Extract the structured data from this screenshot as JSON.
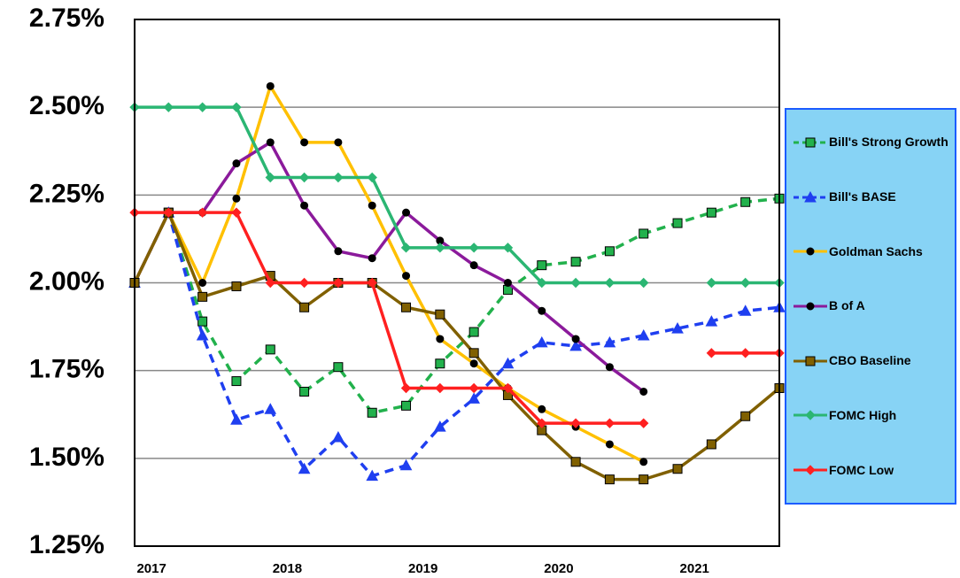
{
  "chart_data": {
    "type": "line",
    "categories": [
      "2017",
      null,
      null,
      null,
      "2018",
      null,
      null,
      null,
      "2019",
      null,
      null,
      null,
      "2020",
      null,
      null,
      null,
      "2021",
      null,
      null,
      null
    ],
    "ylim": [
      1.25,
      2.75
    ],
    "yticks": [
      {
        "value": 1.25,
        "label": "1.25%"
      },
      {
        "value": 1.5,
        "label": "1.50%"
      },
      {
        "value": 1.75,
        "label": "1.75%"
      },
      {
        "value": 2.0,
        "label": "2.00%"
      },
      {
        "value": 2.25,
        "label": "2.25%"
      },
      {
        "value": 2.5,
        "label": "2.50%"
      },
      {
        "value": 2.75,
        "label": "2.75%"
      }
    ],
    "grid": true,
    "legend": "right",
    "series": [
      {
        "name": "Bill's Strong Growth",
        "color": "#22b14c",
        "dashed": true,
        "marker": "square",
        "values": [
          2.0,
          2.2,
          1.89,
          1.72,
          1.81,
          1.69,
          1.76,
          1.63,
          1.65,
          1.77,
          1.86,
          1.98,
          2.05,
          2.06,
          2.09,
          2.14,
          2.17,
          2.2,
          2.23,
          2.24
        ]
      },
      {
        "name": "Bill's BASE",
        "color": "#1f3ff0",
        "dashed": true,
        "marker": "triangle",
        "values": [
          2.0,
          2.2,
          1.85,
          1.61,
          1.64,
          1.47,
          1.56,
          1.45,
          1.48,
          1.59,
          1.67,
          1.77,
          1.83,
          1.82,
          1.83,
          1.85,
          1.87,
          1.89,
          1.92,
          1.93
        ]
      },
      {
        "name": "Goldman Sachs",
        "color": "#ffc000",
        "dashed": false,
        "marker": "circle",
        "values": [
          2.0,
          2.2,
          2.0,
          2.24,
          2.56,
          2.4,
          2.4,
          2.22,
          2.02,
          1.84,
          1.77,
          1.7,
          1.64,
          1.59,
          1.54,
          1.49,
          null,
          null,
          null,
          null
        ]
      },
      {
        "name": "B of A",
        "color": "#8b1a9b",
        "dashed": false,
        "marker": "circle",
        "values": [
          2.0,
          2.2,
          2.2,
          2.34,
          2.4,
          2.22,
          2.09,
          2.07,
          2.2,
          2.12,
          2.05,
          2.0,
          1.92,
          1.84,
          1.76,
          1.69,
          null,
          null,
          null,
          null
        ]
      },
      {
        "name": "CBO Baseline",
        "color": "#806000",
        "dashed": false,
        "marker": "square",
        "values": [
          2.0,
          2.2,
          1.96,
          1.99,
          2.02,
          1.93,
          2.0,
          2.0,
          1.93,
          1.91,
          1.8,
          1.68,
          1.58,
          1.49,
          1.44,
          1.44,
          1.47,
          1.54,
          1.62,
          1.7
        ]
      },
      {
        "name": "FOMC High",
        "color": "#2bb673",
        "dashed": false,
        "marker": "diamond",
        "values": [
          2.5,
          2.5,
          2.5,
          2.5,
          2.3,
          2.3,
          2.3,
          2.3,
          2.1,
          2.1,
          2.1,
          2.1,
          2.0,
          2.0,
          2.0,
          2.0,
          null,
          2.0,
          2.0,
          2.0
        ]
      },
      {
        "name": "FOMC Low",
        "color": "#ff2020",
        "dashed": false,
        "marker": "diamond",
        "values": [
          2.2,
          2.2,
          2.2,
          2.2,
          2.0,
          2.0,
          2.0,
          2.0,
          1.7,
          1.7,
          1.7,
          1.7,
          1.6,
          1.6,
          1.6,
          1.6,
          null,
          1.8,
          1.8,
          1.8
        ]
      }
    ]
  }
}
